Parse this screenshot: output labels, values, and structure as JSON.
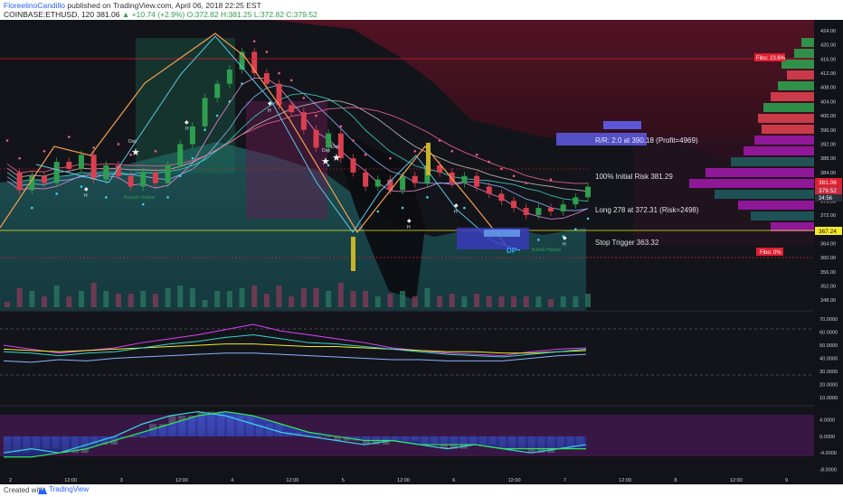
{
  "header": {
    "author": "FloreelinoCandillo",
    "published": "published on TradingView.com, April 06, 2018 22:25 EST",
    "symbol": "COINBASE:ETHUSD, 120",
    "last": "381.06",
    "change": "▲ +10.74 (+2.9%)",
    "ohlc": "O:372.82 H:381.25 L:372.82 C:379.52"
  },
  "footer": {
    "created_with": "Created with",
    "brand": "TradingView"
  },
  "colors": {
    "background": "#111318",
    "bull": "#2e9e4e",
    "bear": "#d9404f",
    "axis_text": "#d0d0d0",
    "fibo_label": "#e01e30",
    "price_label": "#e01e30",
    "yellow_label": "#f1ea2a"
  },
  "chart_data": [
    {
      "type": "line",
      "pane": "price",
      "xlabel": "",
      "ylabel": "",
      "x_ticks": [
        "2",
        "12:00",
        "3",
        "12:00",
        "4",
        "12:00",
        "5",
        "12:00",
        "6",
        "12:00",
        "7",
        "12:00",
        "8",
        "12:00",
        "9"
      ],
      "y_ticks": [
        "348.00",
        "352.00",
        "356.00",
        "360.00",
        "364.00",
        "368.00",
        "372.00",
        "376.00",
        "380.00",
        "384.00",
        "388.00",
        "392.00",
        "396.00",
        "400.00",
        "404.00",
        "408.00",
        "412.00",
        "416.00",
        "420.00",
        "424.00"
      ],
      "ylim": [
        346,
        426
      ],
      "series": [
        {
          "values": [
            384,
            379,
            383,
            381,
            387,
            385,
            389,
            382,
            386,
            383,
            380,
            384,
            381,
            386,
            392,
            397,
            405,
            409,
            413,
            418,
            412,
            409,
            403,
            401,
            396,
            391,
            395,
            388,
            384,
            380,
            382,
            379,
            383,
            381,
            386,
            384,
            381,
            383,
            380,
            378,
            376,
            374,
            372,
            374,
            373,
            375,
            377,
            380
          ]
        }
      ],
      "annotations": {
        "rr_box": "R/R: 2.0 at 390.18 (Profit=4969)",
        "initial_risk": "100% Initial Risk 381.29",
        "long_entry": "Long 278 at 372.31 (Risk=2498)",
        "stop_trigger": "Stop Trigger 363.32",
        "fibo_top": "Fibo: 23.6%",
        "fibo_bottom": "Fibo: 0%",
        "dp_label": "DP",
        "doji_labels": [
          "Doji",
          "Doji",
          "Doji"
        ],
        "h_labels": [
          "H",
          "H",
          "H",
          "H",
          "H",
          "H"
        ],
        "harami_labels": [
          "Bearish Harami",
          "Bullish Harami"
        ],
        "price_labels": [
          "381.06",
          "379.52",
          "34:56",
          "367.24"
        ]
      }
    },
    {
      "type": "line",
      "pane": "oscillator",
      "y_ticks": [
        "10.0000",
        "20.0000",
        "30.0000",
        "40.0000",
        "50.0000",
        "60.0000",
        "70.0000"
      ],
      "ylim": [
        5,
        75
      ],
      "series": [
        {
          "values": [
            50,
            47,
            44,
            46,
            48,
            52,
            55,
            58,
            62,
            66,
            61,
            58,
            55,
            52,
            48,
            46,
            44,
            43,
            42,
            45,
            47,
            48
          ]
        },
        {
          "values": [
            47,
            46,
            45,
            46,
            47,
            48,
            49,
            50,
            51,
            51,
            50,
            49,
            49,
            48,
            47,
            46,
            45,
            45,
            44,
            44,
            45,
            46
          ]
        },
        {
          "values": [
            45,
            44,
            42,
            44,
            45,
            48,
            51,
            53,
            56,
            58,
            55,
            52,
            51,
            49,
            47,
            45,
            43,
            42,
            41,
            43,
            45,
            47
          ]
        },
        {
          "values": [
            38,
            37,
            39,
            38,
            40,
            41,
            42,
            43,
            44,
            44,
            43,
            42,
            41,
            40,
            39,
            39,
            38,
            38,
            38,
            40,
            42,
            43
          ]
        }
      ]
    },
    {
      "type": "area",
      "pane": "momentum",
      "y_ticks": [
        "-8.0000",
        "-4.0000",
        "0.0000",
        "4.0000"
      ],
      "ylim": [
        -9,
        7
      ],
      "series": [
        {
          "values": [
            -4,
            -3,
            -4,
            -2,
            0,
            3,
            5,
            6,
            5,
            3,
            1,
            0,
            -1,
            -2,
            -1,
            -2,
            -3,
            -2,
            -3,
            -4,
            -3,
            -2
          ]
        },
        {
          "values": [
            -5,
            -5,
            -4,
            -3,
            -1,
            1,
            3,
            5,
            6,
            5,
            3,
            1,
            0,
            -1,
            -1,
            -2,
            -2,
            -2,
            -3,
            -3,
            -3,
            -3
          ]
        }
      ]
    }
  ]
}
